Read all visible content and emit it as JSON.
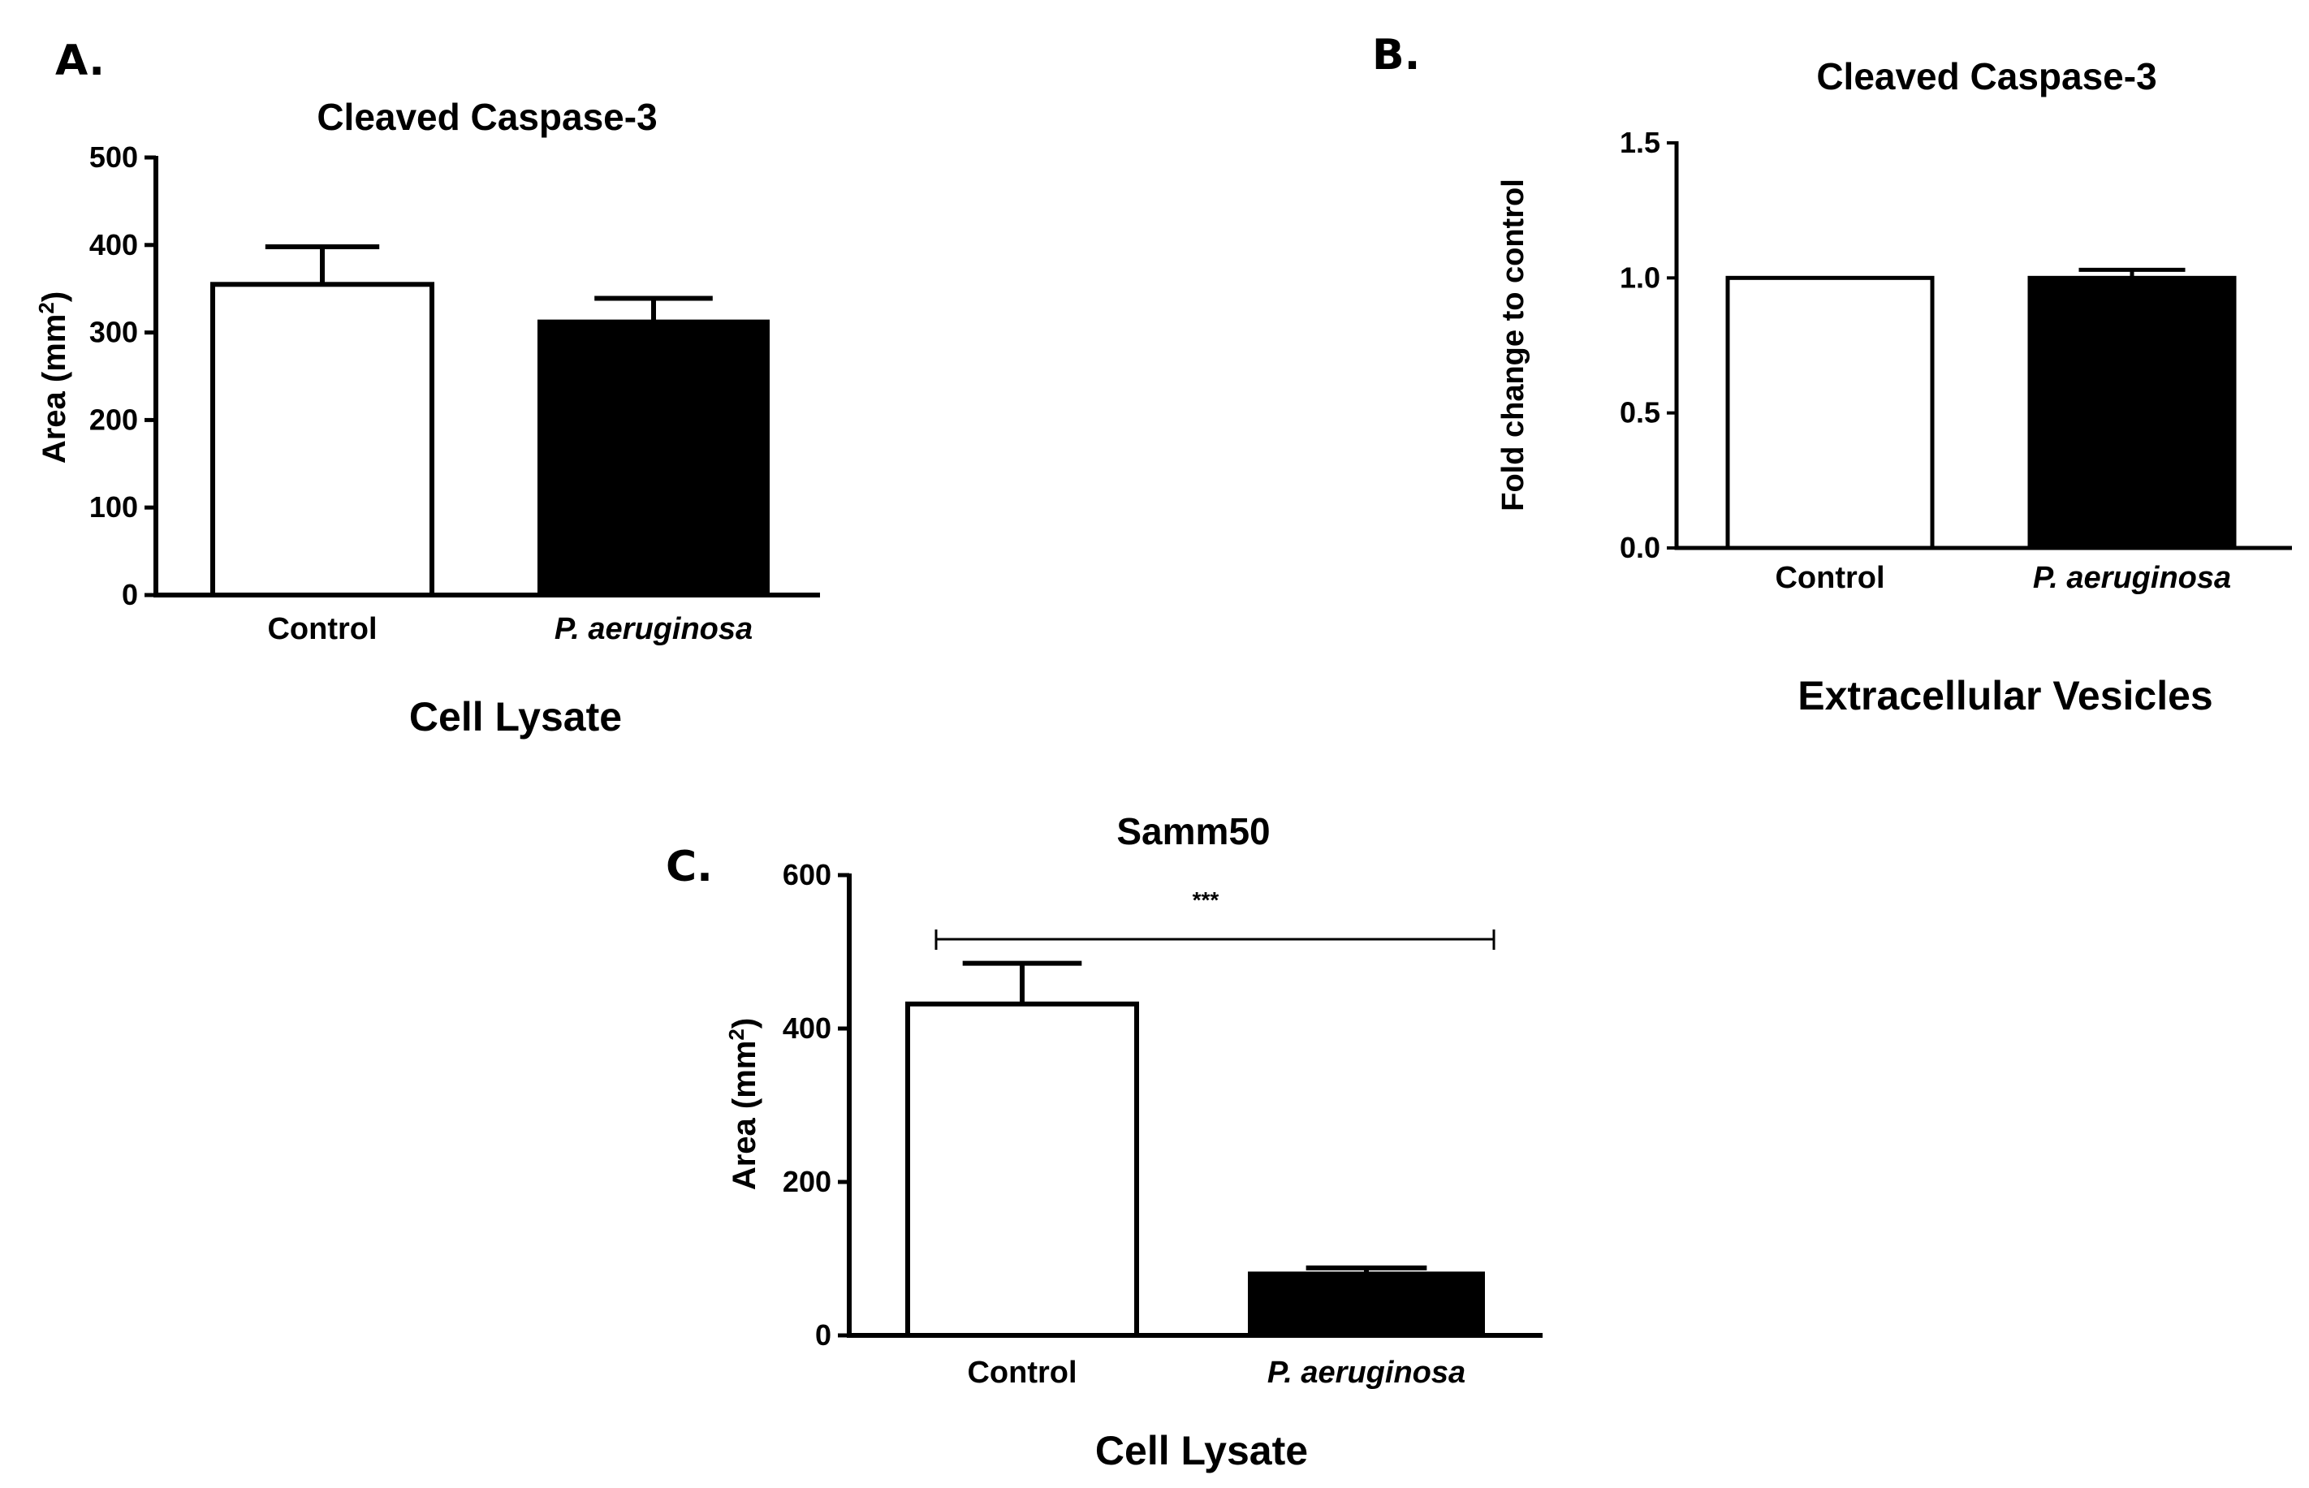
{
  "chart_data": [
    {
      "panel": "A.",
      "type": "bar",
      "title": "Cleaved Caspase-3",
      "ylabel": "Area (mm",
      "ylabel_sup": "2",
      "ylabel_close": ")",
      "xlabel": "Cell Lysate",
      "categories": [
        "Control",
        "P. aeruginosa"
      ],
      "values": [
        355,
        312
      ],
      "errors": [
        43,
        27
      ],
      "bar_fills": [
        "#ffffff",
        "#000000"
      ],
      "ylim": [
        0,
        500
      ],
      "yticks": [
        "0",
        "100",
        "200",
        "300",
        "400",
        "500"
      ],
      "grid": false
    },
    {
      "panel": "B.",
      "type": "bar",
      "title": "Cleaved Caspase-3",
      "ylabel": "Fold change to control",
      "xlabel": "Extracellular Vesicles",
      "categories": [
        "Control",
        "P. aeruginosa"
      ],
      "values": [
        1.0,
        1.0
      ],
      "errors": [
        0,
        0.03
      ],
      "bar_fills": [
        "#ffffff",
        "#000000"
      ],
      "ylim": [
        0,
        1.5
      ],
      "yticks": [
        "0.0",
        "0.5",
        "1.0",
        "1.5"
      ],
      "grid": false
    },
    {
      "panel": "C.",
      "type": "bar",
      "title": "Samm50",
      "ylabel": "Area (mm",
      "ylabel_sup": "2",
      "ylabel_close": ")",
      "xlabel": "Cell Lysate",
      "categories": [
        "Control",
        "P. aeruginosa"
      ],
      "values": [
        432,
        80
      ],
      "errors": [
        53,
        8
      ],
      "bar_fills": [
        "#ffffff",
        "#000000"
      ],
      "ylim": [
        0,
        600
      ],
      "yticks": [
        "0",
        "200",
        "400",
        "600"
      ],
      "significance": "***",
      "grid": false
    }
  ]
}
